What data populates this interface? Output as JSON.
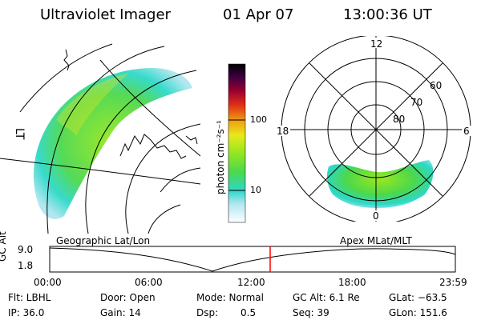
{
  "header": {
    "title": "Ultraviolet Imager",
    "date": "01 Apr 07",
    "time": "13:00:36 UT"
  },
  "geo_panel": {
    "label": "Geographic Lat/Lon",
    "corner_mark": "LT"
  },
  "polar_panel": {
    "label": "Apex MLat/MLT",
    "mlt_labels": [
      "12",
      "18",
      "6",
      "0"
    ],
    "lat_labels": [
      "60",
      "70",
      "80"
    ]
  },
  "colorbar": {
    "unit_label": "photon cm⁻²s⁻¹",
    "ticks": [
      "100",
      "10"
    ],
    "scale": "log"
  },
  "orbit_plot": {
    "ylabel": "GC Alt",
    "yticks": [
      "9.0",
      "1.8"
    ],
    "xticks": [
      "00:00",
      "06:00",
      "12:00",
      "18:00",
      "23:59"
    ],
    "current_time_marker_color": "#ff0000"
  },
  "info": {
    "flt": "Flt: LBHL",
    "door": "Door: Open",
    "mode": "Mode: Normal",
    "gcalt": "GC Alt: 6.1 Re",
    "glat": "GLat: −63.5",
    "ip": "IP: 36.0",
    "gain": "Gain: 14",
    "dsp_label": "Dsp:",
    "dsp_value": "0.5",
    "seq": "Seq: 39",
    "glon": "GLon: 151.6"
  },
  "colors": {
    "palette": [
      "#ffffff",
      "#aee6ef",
      "#2dd8c8",
      "#4cd84c",
      "#9be81e",
      "#e8e81a",
      "#f0a010",
      "#e03018",
      "#9a0030",
      "#3a0040",
      "#000000"
    ]
  }
}
